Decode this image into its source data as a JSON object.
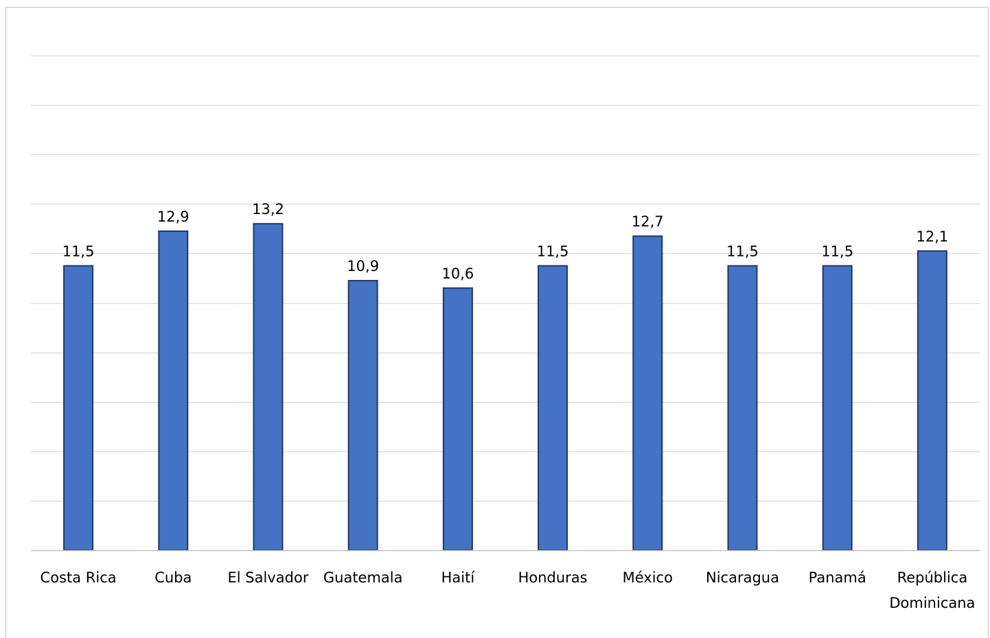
{
  "chart_data": {
    "type": "bar",
    "categories": [
      "Costa Rica",
      "Cuba",
      "El Salvador",
      "Guatemala",
      "Haití",
      "Honduras",
      "México",
      "Nicaragua",
      "Panamá",
      "República Dominicana"
    ],
    "category_lines": [
      [
        "Costa Rica"
      ],
      [
        "Cuba"
      ],
      [
        "El Salvador"
      ],
      [
        "Guatemala"
      ],
      [
        "Haití"
      ],
      [
        "Honduras"
      ],
      [
        "México"
      ],
      [
        "Nicaragua"
      ],
      [
        "Panamá"
      ],
      [
        "República",
        "Dominicana"
      ]
    ],
    "values": [
      11.5,
      12.9,
      13.2,
      10.9,
      10.6,
      11.5,
      12.7,
      11.5,
      11.5,
      12.1
    ],
    "value_labels": [
      "11,5",
      "12,9",
      "13,2",
      "10,9",
      "10,6",
      "11,5",
      "12,7",
      "11,5",
      "11,5",
      "12,1"
    ],
    "title": "",
    "xlabel": "",
    "ylabel": "",
    "ylim": [
      0,
      21
    ],
    "ytick_step": 2,
    "grid": true,
    "legend": "none",
    "colors": {
      "bar_fill": "#4472C4",
      "bar_stroke": "#1F3864",
      "gridline": "#d9d9d9",
      "axis": "#bfbfbf",
      "frame": "#bfbfbf"
    }
  }
}
